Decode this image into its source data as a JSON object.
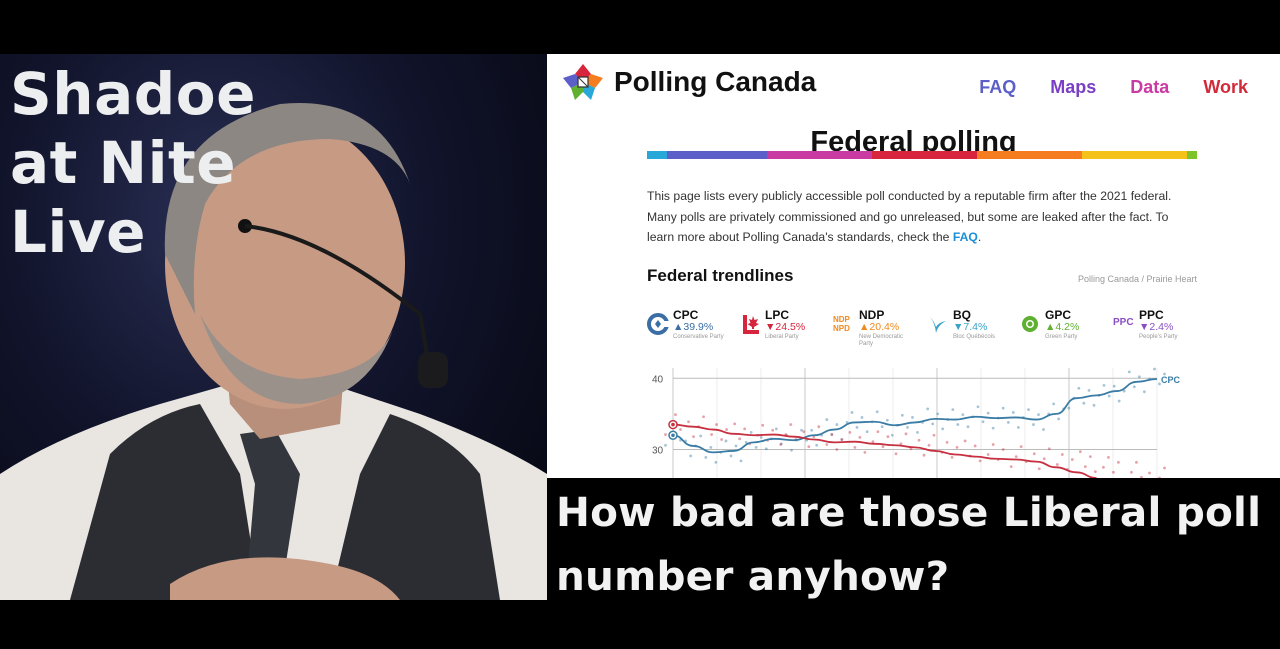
{
  "show": {
    "title_lines": [
      "Shadoe",
      "at Nite",
      "Live"
    ]
  },
  "site": {
    "brand": "Polling Canada",
    "nav": [
      {
        "label": "FAQ",
        "color": "#5b5fc7"
      },
      {
        "label": "Maps",
        "color": "#7a3fc4"
      },
      {
        "label": "Data",
        "color": "#c93aa3"
      },
      {
        "label": "Work",
        "color": "#d12a3a"
      }
    ],
    "heading": "Federal polling",
    "rainbow_colors": [
      "#27a8d8",
      "#5b5fc7",
      "#c93aa3",
      "#d6253c",
      "#f57c1f",
      "#f5c21a",
      "#7bc42a"
    ],
    "intro_line1": "This page lists every publicly accessible poll conducted by a reputable firm after the 2021 federal.",
    "intro_line2": "Many polls are privately commissioned and go unreleased, but some are leaked after the fact. To",
    "intro_line3_pre": "learn more about Polling Canada's standards, check the ",
    "intro_link": "FAQ",
    "intro_line3_post": ".",
    "trend_title": "Federal trendlines",
    "credit": "Polling Canada / Prairie Heart",
    "parties": [
      {
        "abbr": "CPC",
        "value": "▲39.9%",
        "full": "Conservative Party",
        "color": "#3a6ea5",
        "icon": "cpc-logo-icon"
      },
      {
        "abbr": "LPC",
        "value": "▼24.5%",
        "full": "Liberal Party",
        "color": "#d6253c",
        "icon": "maple-leaf-icon"
      },
      {
        "abbr": "NDP",
        "value": "▲20.4%",
        "full": "New Democratic Party",
        "color": "#f08a1f",
        "icon": "ndp-logo-icon",
        "icon_text_top": "NDP",
        "icon_text_bottom": "NPD"
      },
      {
        "abbr": "BQ",
        "value": "▼7.4%",
        "full": "Bloc Québécois",
        "color": "#3aa4c8",
        "icon": "bq-logo-icon"
      },
      {
        "abbr": "GPC",
        "value": "▲4.2%",
        "full": "Green Party",
        "color": "#5fb030",
        "icon": "green-flower-icon"
      },
      {
        "abbr": "PPC",
        "value": "▼2.4%",
        "full": "People's Party",
        "color": "#8a4fc6",
        "icon": "ppc-logo-icon",
        "icon_text": "PPC"
      }
    ]
  },
  "chart_data": {
    "type": "line",
    "title": "",
    "xlabel": "",
    "ylabel": "",
    "y_ticks": [
      40,
      30
    ],
    "ylim": [
      26,
      42
    ],
    "grid": true,
    "series": [
      {
        "name": "CPC",
        "color": "#3a7ca5",
        "values": [
          32,
          30.5,
          29.6,
          29.8,
          31,
          31.5,
          31.3,
          32,
          32.8,
          33.8,
          33.9,
          33.4,
          33.8,
          34.3,
          34.2,
          34.6,
          34.4,
          34.5,
          34.2,
          35,
          37.2,
          37.6,
          38.2,
          39.5,
          39.9
        ]
      },
      {
        "name": "",
        "color": "#c63040",
        "values": [
          33.5,
          33.2,
          32.8,
          32.2,
          32,
          32.1,
          31.8,
          31.4,
          31,
          31.1,
          30.8,
          30.6,
          30.3,
          29.8,
          29.3,
          29,
          28.7,
          28.6,
          28.3,
          27.5,
          26.8,
          26
        ]
      }
    ],
    "end_label": "CPC"
  },
  "caption": {
    "line1": "How bad are those Liberal poll",
    "line2": "number anyhow?"
  }
}
